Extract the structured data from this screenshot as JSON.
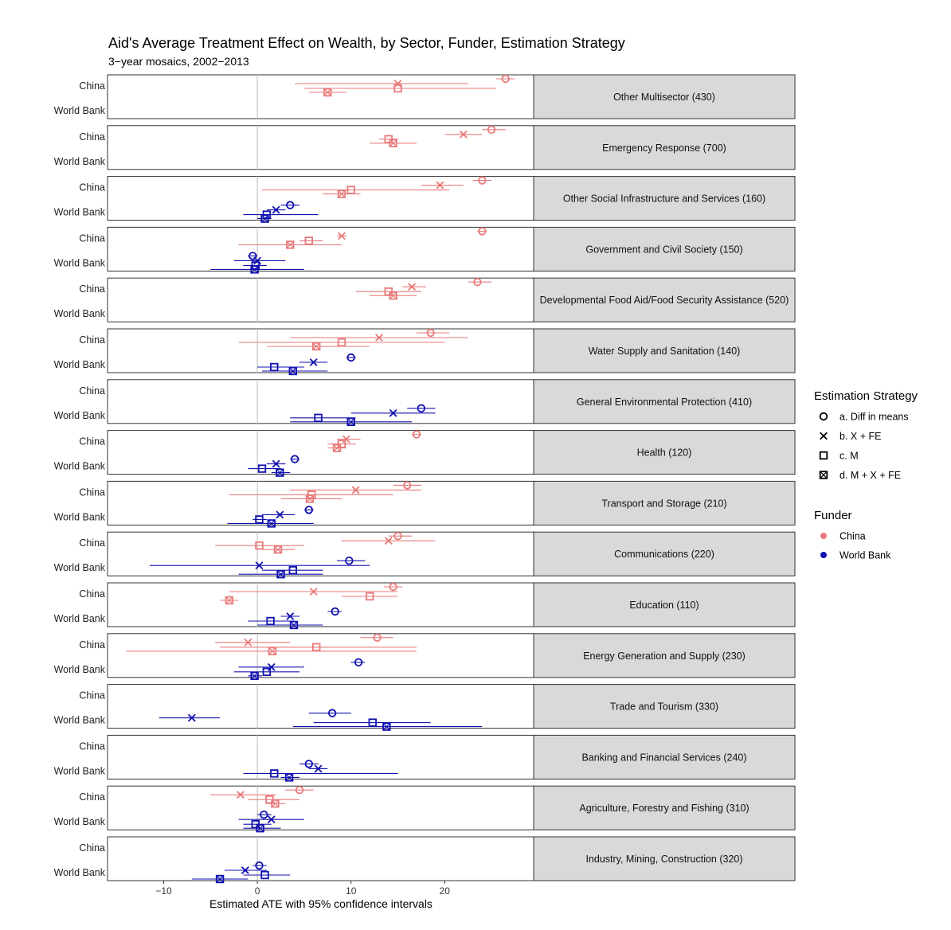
{
  "chart_data": {
    "type": "scatter",
    "title": "Aid's Average Treatment Effect on Wealth, by Sector, Funder, Estimation Strategy",
    "subtitle": "3−year mosaics, 2002−2013",
    "xlabel": "Estimated ATE with 95% confidence intervals",
    "xlim": [
      -16,
      29.5
    ],
    "xticks": [
      -10,
      0,
      10,
      20
    ],
    "tick_labels": [
      "−10",
      "0",
      "10",
      "20"
    ],
    "funders": [
      "China",
      "World Bank"
    ],
    "legend": {
      "strategy_title": "Estimation Strategy",
      "strategies": [
        {
          "key": "a",
          "label": "a. Diff in means",
          "shape": "circle"
        },
        {
          "key": "b",
          "label": "b. X + FE",
          "shape": "cross"
        },
        {
          "key": "c",
          "label": "c. M",
          "shape": "square"
        },
        {
          "key": "d",
          "label": "d. M + X + FE",
          "shape": "boxx"
        }
      ],
      "funder_title": "Funder",
      "funder_items": [
        {
          "label": "China",
          "color": "#e87a7a"
        },
        {
          "label": "World Bank",
          "color": "#1010b0"
        }
      ]
    },
    "colors": {
      "China": "#e87a7a",
      "World Bank": "#1010b0"
    },
    "panels": [
      {
        "sector": "Other Multisector (430)",
        "estimates": [
          {
            "funder": "China",
            "strategy": "a",
            "est": 26.5,
            "lo": 25.5,
            "hi": 27.5
          },
          {
            "funder": "China",
            "strategy": "b",
            "est": 15.0,
            "lo": 4.0,
            "hi": 22.5
          },
          {
            "funder": "China",
            "strategy": "c",
            "est": 15.0,
            "lo": 5.0,
            "hi": 25.5
          },
          {
            "funder": "China",
            "strategy": "d",
            "est": 7.5,
            "lo": 5.5,
            "hi": 9.5
          }
        ]
      },
      {
        "sector": "Emergency Response (700)",
        "estimates": [
          {
            "funder": "China",
            "strategy": "a",
            "est": 25.0,
            "lo": 24.0,
            "hi": 26.5
          },
          {
            "funder": "China",
            "strategy": "b",
            "est": 22.0,
            "lo": 20.0,
            "hi": 24.0
          },
          {
            "funder": "China",
            "strategy": "c",
            "est": 14.0,
            "lo": 13.0,
            "hi": 15.0
          },
          {
            "funder": "China",
            "strategy": "d",
            "est": 14.5,
            "lo": 12.0,
            "hi": 17.0
          }
        ]
      },
      {
        "sector": "Other Social Infrastructure and Services (160)",
        "estimates": [
          {
            "funder": "China",
            "strategy": "a",
            "est": 24.0,
            "lo": 23.0,
            "hi": 25.0
          },
          {
            "funder": "China",
            "strategy": "b",
            "est": 19.5,
            "lo": 17.5,
            "hi": 22.0
          },
          {
            "funder": "China",
            "strategy": "c",
            "est": 10.0,
            "lo": 0.5,
            "hi": 20.5
          },
          {
            "funder": "China",
            "strategy": "d",
            "est": 9.0,
            "lo": 7.0,
            "hi": 11.0
          },
          {
            "funder": "World Bank",
            "strategy": "a",
            "est": 3.5,
            "lo": 2.5,
            "hi": 4.5
          },
          {
            "funder": "World Bank",
            "strategy": "b",
            "est": 2.0,
            "lo": 1.0,
            "hi": 3.0
          },
          {
            "funder": "World Bank",
            "strategy": "c",
            "est": 1.0,
            "lo": -1.5,
            "hi": 6.5
          },
          {
            "funder": "World Bank",
            "strategy": "d",
            "est": 0.8,
            "lo": 0.0,
            "hi": 1.5
          }
        ]
      },
      {
        "sector": "Government and Civil Society (150)",
        "estimates": [
          {
            "funder": "China",
            "strategy": "a",
            "est": 24.0,
            "lo": 23.5,
            "hi": 24.5
          },
          {
            "funder": "China",
            "strategy": "b",
            "est": 9.0,
            "lo": 8.5,
            "hi": 9.5
          },
          {
            "funder": "China",
            "strategy": "c",
            "est": 5.5,
            "lo": 4.5,
            "hi": 7.0
          },
          {
            "funder": "China",
            "strategy": "d",
            "est": 3.5,
            "lo": -2.0,
            "hi": 9.0
          },
          {
            "funder": "World Bank",
            "strategy": "a",
            "est": -0.5,
            "lo": -1.0,
            "hi": 0.0
          },
          {
            "funder": "World Bank",
            "strategy": "b",
            "est": 0.0,
            "lo": -2.5,
            "hi": 3.0
          },
          {
            "funder": "World Bank",
            "strategy": "c",
            "est": -0.2,
            "lo": -1.5,
            "hi": 1.0
          },
          {
            "funder": "World Bank",
            "strategy": "d",
            "est": -0.3,
            "lo": -5.0,
            "hi": 5.0
          }
        ]
      },
      {
        "sector": "Developmental Food Aid/Food Security Assistance (520)",
        "estimates": [
          {
            "funder": "China",
            "strategy": "a",
            "est": 23.5,
            "lo": 22.5,
            "hi": 25.0
          },
          {
            "funder": "China",
            "strategy": "b",
            "est": 16.5,
            "lo": 15.5,
            "hi": 18.0
          },
          {
            "funder": "China",
            "strategy": "c",
            "est": 14.0,
            "lo": 10.5,
            "hi": 17.5
          },
          {
            "funder": "China",
            "strategy": "d",
            "est": 14.5,
            "lo": 12.0,
            "hi": 17.0
          }
        ]
      },
      {
        "sector": "Water Supply and Sanitation (140)",
        "estimates": [
          {
            "funder": "China",
            "strategy": "a",
            "est": 18.5,
            "lo": 17.0,
            "hi": 20.5
          },
          {
            "funder": "China",
            "strategy": "b",
            "est": 13.0,
            "lo": 3.5,
            "hi": 22.5
          },
          {
            "funder": "China",
            "strategy": "c",
            "est": 9.0,
            "lo": -2.0,
            "hi": 20.0
          },
          {
            "funder": "China",
            "strategy": "d",
            "est": 6.3,
            "lo": 1.0,
            "hi": 12.0
          },
          {
            "funder": "World Bank",
            "strategy": "a",
            "est": 10.0,
            "lo": 9.5,
            "hi": 10.5
          },
          {
            "funder": "World Bank",
            "strategy": "b",
            "est": 6.0,
            "lo": 4.5,
            "hi": 7.5
          },
          {
            "funder": "World Bank",
            "strategy": "c",
            "est": 1.8,
            "lo": 0.0,
            "hi": 5.0
          },
          {
            "funder": "World Bank",
            "strategy": "d",
            "est": 3.8,
            "lo": 0.5,
            "hi": 7.5
          }
        ]
      },
      {
        "sector": "General Environmental Protection (410)",
        "estimates": [
          {
            "funder": "World Bank",
            "strategy": "a",
            "est": 17.5,
            "lo": 16.0,
            "hi": 19.0
          },
          {
            "funder": "World Bank",
            "strategy": "b",
            "est": 14.5,
            "lo": 10.0,
            "hi": 19.0
          },
          {
            "funder": "World Bank",
            "strategy": "c",
            "est": 6.5,
            "lo": 3.5,
            "hi": 10.5
          },
          {
            "funder": "World Bank",
            "strategy": "d",
            "est": 10.0,
            "lo": 3.5,
            "hi": 16.5
          }
        ]
      },
      {
        "sector": "Health (120)",
        "estimates": [
          {
            "funder": "China",
            "strategy": "a",
            "est": 17.0,
            "lo": 16.5,
            "hi": 17.5
          },
          {
            "funder": "China",
            "strategy": "b",
            "est": 9.5,
            "lo": 8.5,
            "hi": 11.0
          },
          {
            "funder": "China",
            "strategy": "c",
            "est": 9.0,
            "lo": 7.5,
            "hi": 10.5
          },
          {
            "funder": "China",
            "strategy": "d",
            "est": 8.5,
            "lo": 7.5,
            "hi": 9.5
          },
          {
            "funder": "World Bank",
            "strategy": "a",
            "est": 4.0,
            "lo": 3.5,
            "hi": 4.5
          },
          {
            "funder": "World Bank",
            "strategy": "b",
            "est": 2.0,
            "lo": 1.0,
            "hi": 3.0
          },
          {
            "funder": "World Bank",
            "strategy": "c",
            "est": 0.5,
            "lo": -1.0,
            "hi": 2.5
          },
          {
            "funder": "World Bank",
            "strategy": "d",
            "est": 2.4,
            "lo": 1.5,
            "hi": 3.5
          }
        ]
      },
      {
        "sector": "Transport and Storage (210)",
        "estimates": [
          {
            "funder": "China",
            "strategy": "a",
            "est": 16.0,
            "lo": 14.5,
            "hi": 17.5
          },
          {
            "funder": "China",
            "strategy": "b",
            "est": 10.5,
            "lo": 3.5,
            "hi": 17.5
          },
          {
            "funder": "China",
            "strategy": "c",
            "est": 5.8,
            "lo": -3.0,
            "hi": 14.5
          },
          {
            "funder": "China",
            "strategy": "d",
            "est": 5.6,
            "lo": 2.5,
            "hi": 9.0
          },
          {
            "funder": "World Bank",
            "strategy": "a",
            "est": 5.5,
            "lo": 5.0,
            "hi": 6.0
          },
          {
            "funder": "World Bank",
            "strategy": "b",
            "est": 2.4,
            "lo": 0.5,
            "hi": 4.0
          },
          {
            "funder": "World Bank",
            "strategy": "c",
            "est": 0.2,
            "lo": -0.5,
            "hi": 1.0
          },
          {
            "funder": "World Bank",
            "strategy": "d",
            "est": 1.5,
            "lo": -3.2,
            "hi": 6.0
          }
        ]
      },
      {
        "sector": "Communications (220)",
        "estimates": [
          {
            "funder": "China",
            "strategy": "a",
            "est": 15.0,
            "lo": 14.0,
            "hi": 16.5
          },
          {
            "funder": "China",
            "strategy": "b",
            "est": 14.0,
            "lo": 9.0,
            "hi": 19.0
          },
          {
            "funder": "China",
            "strategy": "c",
            "est": 0.2,
            "lo": -4.5,
            "hi": 5.0
          },
          {
            "funder": "China",
            "strategy": "d",
            "est": 2.2,
            "lo": 0.5,
            "hi": 4.0
          },
          {
            "funder": "World Bank",
            "strategy": "a",
            "est": 9.8,
            "lo": 8.5,
            "hi": 11.5
          },
          {
            "funder": "World Bank",
            "strategy": "b",
            "est": 0.2,
            "lo": -11.5,
            "hi": 12.0
          },
          {
            "funder": "World Bank",
            "strategy": "c",
            "est": 3.8,
            "lo": 0.5,
            "hi": 7.0
          },
          {
            "funder": "World Bank",
            "strategy": "d",
            "est": 2.5,
            "lo": -2.0,
            "hi": 7.0
          }
        ]
      },
      {
        "sector": "Education (110)",
        "estimates": [
          {
            "funder": "China",
            "strategy": "a",
            "est": 14.5,
            "lo": 13.5,
            "hi": 15.5
          },
          {
            "funder": "China",
            "strategy": "b",
            "est": 6.0,
            "lo": -3.0,
            "hi": 15.0
          },
          {
            "funder": "China",
            "strategy": "c",
            "est": 12.0,
            "lo": 9.0,
            "hi": 15.0
          },
          {
            "funder": "China",
            "strategy": "d",
            "est": -3.0,
            "lo": -4.0,
            "hi": -2.0
          },
          {
            "funder": "World Bank",
            "strategy": "a",
            "est": 8.3,
            "lo": 7.5,
            "hi": 9.0
          },
          {
            "funder": "World Bank",
            "strategy": "b",
            "est": 3.5,
            "lo": 2.5,
            "hi": 4.5
          },
          {
            "funder": "World Bank",
            "strategy": "c",
            "est": 1.4,
            "lo": -1.0,
            "hi": 4.0
          },
          {
            "funder": "World Bank",
            "strategy": "d",
            "est": 3.9,
            "lo": 0.0,
            "hi": 7.0
          }
        ]
      },
      {
        "sector": "Energy Generation and Supply (230)",
        "estimates": [
          {
            "funder": "China",
            "strategy": "a",
            "est": 12.8,
            "lo": 11.0,
            "hi": 14.5
          },
          {
            "funder": "China",
            "strategy": "b",
            "est": -1.0,
            "lo": -4.5,
            "hi": 3.5
          },
          {
            "funder": "China",
            "strategy": "c",
            "est": 6.3,
            "lo": -4.0,
            "hi": 17.0
          },
          {
            "funder": "China",
            "strategy": "d",
            "est": 1.6,
            "lo": -14.0,
            "hi": 17.0
          },
          {
            "funder": "World Bank",
            "strategy": "a",
            "est": 10.8,
            "lo": 10.0,
            "hi": 11.5
          },
          {
            "funder": "World Bank",
            "strategy": "b",
            "est": 1.5,
            "lo": -2.0,
            "hi": 5.0
          },
          {
            "funder": "World Bank",
            "strategy": "c",
            "est": 1.0,
            "lo": -2.5,
            "hi": 4.5
          },
          {
            "funder": "World Bank",
            "strategy": "d",
            "est": -0.3,
            "lo": -1.0,
            "hi": 0.5
          }
        ]
      },
      {
        "sector": "Trade and Tourism (330)",
        "estimates": [
          {
            "funder": "World Bank",
            "strategy": "a",
            "est": 8.0,
            "lo": 5.5,
            "hi": 10.0
          },
          {
            "funder": "World Bank",
            "strategy": "b",
            "est": -7.0,
            "lo": -10.5,
            "hi": -4.0
          },
          {
            "funder": "World Bank",
            "strategy": "c",
            "est": 12.3,
            "lo": 6.0,
            "hi": 18.5
          },
          {
            "funder": "World Bank",
            "strategy": "d",
            "est": 13.8,
            "lo": 3.8,
            "hi": 24.0
          }
        ]
      },
      {
        "sector": "Banking and Financial Services (240)",
        "estimates": [
          {
            "funder": "World Bank",
            "strategy": "a",
            "est": 5.5,
            "lo": 4.5,
            "hi": 6.5
          },
          {
            "funder": "World Bank",
            "strategy": "b",
            "est": 6.5,
            "lo": 5.5,
            "hi": 7.5
          },
          {
            "funder": "World Bank",
            "strategy": "c",
            "est": 1.8,
            "lo": -1.5,
            "hi": 15.0
          },
          {
            "funder": "World Bank",
            "strategy": "d",
            "est": 3.4,
            "lo": 2.5,
            "hi": 4.5
          }
        ]
      },
      {
        "sector": "Agriculture, Forestry and Fishing (310)",
        "estimates": [
          {
            "funder": "China",
            "strategy": "a",
            "est": 4.5,
            "lo": 3.0,
            "hi": 6.0
          },
          {
            "funder": "China",
            "strategy": "b",
            "est": -1.8,
            "lo": -5.0,
            "hi": 2.0
          },
          {
            "funder": "China",
            "strategy": "c",
            "est": 1.3,
            "lo": -1.0,
            "hi": 4.5
          },
          {
            "funder": "China",
            "strategy": "d",
            "est": 1.9,
            "lo": 1.0,
            "hi": 3.0
          },
          {
            "funder": "World Bank",
            "strategy": "a",
            "est": 0.7,
            "lo": 0.0,
            "hi": 1.5
          },
          {
            "funder": "World Bank",
            "strategy": "b",
            "est": 1.5,
            "lo": -2.0,
            "hi": 5.0
          },
          {
            "funder": "World Bank",
            "strategy": "c",
            "est": -0.2,
            "lo": -1.5,
            "hi": 1.5
          },
          {
            "funder": "World Bank",
            "strategy": "d",
            "est": 0.3,
            "lo": -1.5,
            "hi": 2.5
          }
        ]
      },
      {
        "sector": "Industry, Mining, Construction (320)",
        "estimates": [
          {
            "funder": "World Bank",
            "strategy": "a",
            "est": 0.2,
            "lo": -0.5,
            "hi": 1.0
          },
          {
            "funder": "World Bank",
            "strategy": "b",
            "est": -1.3,
            "lo": -3.5,
            "hi": 1.0
          },
          {
            "funder": "World Bank",
            "strategy": "c",
            "est": 0.8,
            "lo": -1.5,
            "hi": 3.5
          },
          {
            "funder": "World Bank",
            "strategy": "d",
            "est": -4.0,
            "lo": -7.0,
            "hi": -1.0
          }
        ]
      }
    ]
  }
}
